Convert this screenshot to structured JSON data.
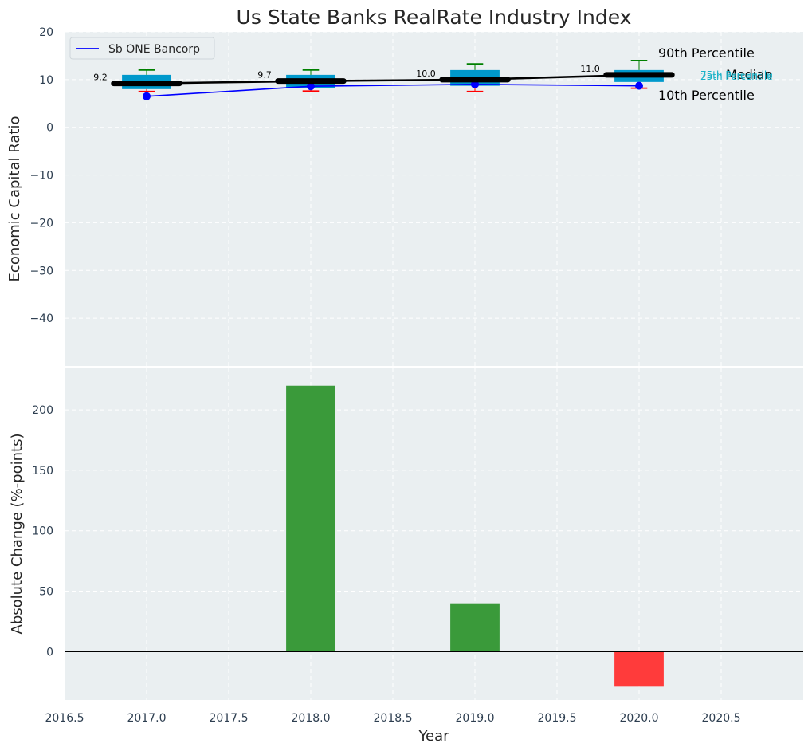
{
  "title": "Us State Banks RealRate Industry Index",
  "colors": {
    "panel_bg": "#eaeff1",
    "grid": "#ffffff",
    "iqr_box": "#0099cc",
    "median_line": "#000000",
    "company_line": "#0000ff",
    "p90_whisker": "#008000",
    "p10_whisker": "#ff0000",
    "bar_positive": "#3a9a3a",
    "bar_negative": "#ff3b3b",
    "tick_text": "#2d3e50",
    "quartile_label": "#17b1c7"
  },
  "chart_data": [
    {
      "type": "box",
      "title": "Us State Banks RealRate Industry Index",
      "xlabel": "",
      "ylabel": "Economic Capital Ratio",
      "xlim": [
        2016.5,
        2021.0
      ],
      "ylim": [
        -50,
        20
      ],
      "yticks": [
        20,
        10,
        0,
        -10,
        -20,
        -30,
        -40
      ],
      "ytick_labels": [
        "20",
        "10",
        "0",
        "−10",
        "−20",
        "−30",
        "−40"
      ],
      "grid": true,
      "legend": {
        "position": "top-left",
        "entries": [
          "Sb ONE Bancorp"
        ]
      },
      "years": [
        2017,
        2018,
        2019,
        2020
      ],
      "p10": [
        7.5,
        7.6,
        7.5,
        8.2
      ],
      "q1": [
        8.0,
        8.3,
        8.7,
        9.5
      ],
      "median": [
        9.2,
        9.7,
        10.0,
        11.0
      ],
      "q3": [
        11.0,
        11.0,
        12.0,
        12.0
      ],
      "p90": [
        12.0,
        12.0,
        13.3,
        14.0
      ],
      "median_labels": [
        "9.2",
        "9.7",
        "10.0",
        "11.0"
      ],
      "company": {
        "name": "Sb ONE Bancorp",
        "values": [
          6.5,
          8.6,
          9.0,
          8.7
        ]
      },
      "annotations": [
        "90th Percentile",
        "Median",
        "10th Percentile",
        "75th Percentile",
        "25th Percentile"
      ]
    },
    {
      "type": "bar",
      "xlabel": "Year",
      "ylabel": "Absolute Change (%-points)",
      "xlim": [
        2016.5,
        2021.0
      ],
      "ylim": [
        -40,
        235
      ],
      "xticks": [
        2016.5,
        2017.0,
        2017.5,
        2018.0,
        2018.5,
        2019.0,
        2019.5,
        2020.0,
        2020.5
      ],
      "xtick_labels": [
        "2016.5",
        "2017.0",
        "2017.5",
        "2018.0",
        "2018.5",
        "2019.0",
        "2019.5",
        "2020.0",
        "2020.5"
      ],
      "yticks": [
        200,
        150,
        100,
        50,
        0
      ],
      "ytick_labels": [
        "200",
        "150",
        "100",
        "50",
        "0"
      ],
      "grid": true,
      "x": [
        2018,
        2019,
        2020
      ],
      "values": [
        220,
        40,
        -29
      ]
    }
  ]
}
